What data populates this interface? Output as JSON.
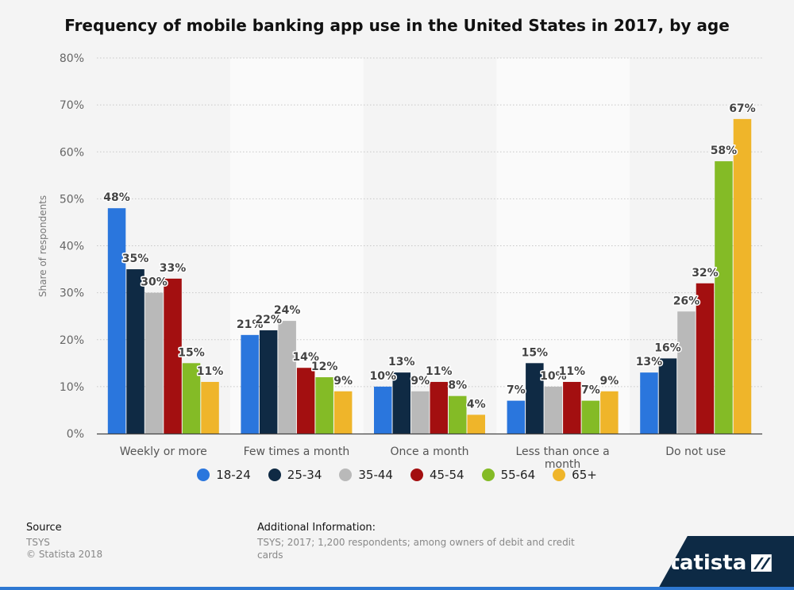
{
  "title": "Frequency of mobile banking app use in the United States in 2017, by age",
  "colors": {
    "18-24": "#2a76dd",
    "25-34": "#0f2a44",
    "35-44": "#b9b9b9",
    "45-54": "#a30f10",
    "55-64": "#84bb26",
    "65+": "#efb52a",
    "band": "#fafafa"
  },
  "chart_data": {
    "type": "bar",
    "title": "Frequency of mobile banking app use in the United States in 2017, by age",
    "ylabel": "Share of respondents",
    "xlabel": "",
    "ylim": [
      0,
      80
    ],
    "yticks": [
      "0%",
      "10%",
      "20%",
      "30%",
      "40%",
      "50%",
      "60%",
      "70%",
      "80%"
    ],
    "categories": [
      "Weekly or more",
      "Few times a month",
      "Once a month",
      "Less than once a month",
      "Do not use"
    ],
    "series": [
      {
        "name": "18-24",
        "values": [
          48,
          21,
          10,
          7,
          13
        ],
        "labels": [
          "48%",
          "21%",
          "10%",
          "7%",
          "13%"
        ]
      },
      {
        "name": "25-34",
        "values": [
          35,
          22,
          13,
          15,
          16
        ],
        "labels": [
          "35%",
          "22%",
          "13%",
          "15%",
          "16%"
        ]
      },
      {
        "name": "35-44",
        "values": [
          30,
          24,
          9,
          10,
          26
        ],
        "labels": [
          "30%",
          "24%",
          "9%",
          "10%",
          "26%"
        ]
      },
      {
        "name": "45-54",
        "values": [
          33,
          14,
          11,
          11,
          32
        ],
        "labels": [
          "33%",
          "14%",
          "11%",
          "11%",
          "32%"
        ]
      },
      {
        "name": "55-64",
        "values": [
          15,
          12,
          8,
          7,
          58
        ],
        "labels": [
          "15%",
          "12%",
          "8%",
          "7%",
          "58%"
        ]
      },
      {
        "name": "65+",
        "values": [
          11,
          9,
          4,
          9,
          67
        ],
        "labels": [
          "11%",
          "9%",
          "4%",
          "9%",
          "67%"
        ]
      }
    ],
    "grid": true,
    "legend": "bottom"
  },
  "footer": {
    "source_heading": "Source",
    "source_text": "TSYS",
    "copyright": "© Statista 2018",
    "info_heading": "Additional Information:",
    "info_text": "TSYS; 2017; 1,200 respondents; among owners of debit and credit cards"
  },
  "brand": {
    "name": "statista",
    "icon": "statista-logo-icon"
  }
}
